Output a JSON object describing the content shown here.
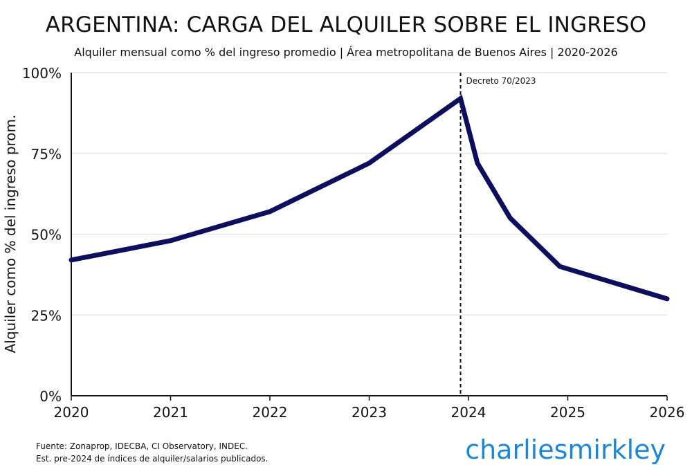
{
  "chart_data": {
    "type": "line",
    "title": "ARGENTINA: CARGA DEL ALQUILER SOBRE EL INGRESO",
    "subtitle": "Alquiler mensual como % del ingreso promedio | Área metropolitana de Buenos Aires | 2020-2026",
    "xlabel": "",
    "ylabel": "Alquiler como % del ingreso prom.",
    "xlim": [
      2020,
      2026
    ],
    "ylim": [
      0,
      100
    ],
    "x_ticks": [
      "2020",
      "2021",
      "2022",
      "2023",
      "2024",
      "2025",
      "2026"
    ],
    "y_ticks": [
      "0%",
      "25%",
      "50%",
      "75%",
      "100%"
    ],
    "grid": "horizontal",
    "line_color": "#0d0f5c",
    "series": [
      {
        "x": [
          2020.0,
          2021.0,
          2022.0,
          2023.0,
          2023.92,
          2024.09,
          2024.42,
          2024.92,
          2025.46,
          2026.0
        ],
        "y": [
          42,
          48,
          57,
          72,
          92,
          72,
          55,
          40,
          35,
          30
        ]
      }
    ],
    "annotations": [
      {
        "type": "vline",
        "x": 2023.92,
        "style": "dashed",
        "label": "Decreto 70/2023"
      }
    ]
  },
  "footer": {
    "source_line1": "Fuente: Zonaprop, IDECBA, CI Observatory, INDEC.",
    "source_line2": "Est. pre-2024 de índices de alquiler/salarios publicados.",
    "brand": "charliesmirkley",
    "brand_color": "#1f86d6"
  }
}
